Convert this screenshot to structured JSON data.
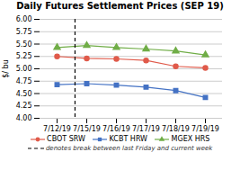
{
  "chart_data": {
    "type": "line",
    "title": "Daily Futures Settlement Prices (SEP 19)",
    "ylabel": "$/ bu",
    "categories": [
      "7/12/19",
      "7/15/19",
      "7/16/19",
      "7/17/19",
      "7/18/19",
      "7/19/19"
    ],
    "series": [
      {
        "name": "CBOT SRW",
        "color": "#e05a4a",
        "marker": "circle",
        "values": [
          5.25,
          5.21,
          5.2,
          5.17,
          5.05,
          5.02
        ]
      },
      {
        "name": "KCBT HRW",
        "color": "#4472c4",
        "marker": "square",
        "values": [
          4.68,
          4.7,
          4.67,
          4.63,
          4.56,
          4.42
        ]
      },
      {
        "name": "MGEX HRS",
        "color": "#70ad47",
        "marker": "triangle",
        "values": [
          5.43,
          5.47,
          5.43,
          5.4,
          5.36,
          5.28
        ]
      }
    ],
    "ylim": [
      4.0,
      6.0
    ],
    "yticks": [
      {
        "value": 4.0,
        "label": "4.00"
      },
      {
        "value": 4.25,
        "label": "4.25"
      },
      {
        "value": 4.5,
        "label": "4.50"
      },
      {
        "value": 4.75,
        "label": "4.75"
      },
      {
        "value": 5.0,
        "label": "5.00"
      },
      {
        "value": 5.25,
        "label": "5.25"
      },
      {
        "value": 5.5,
        "label": "5.50"
      },
      {
        "value": 5.75,
        "label": "5.75"
      },
      {
        "value": 6.0,
        "label": "6.00"
      }
    ],
    "grid": true,
    "legend": "bottom",
    "annotations": [
      {
        "text": "denotes break between last Friday and current week",
        "x": 0.62,
        "line_style": "dashed",
        "color": "#000000"
      }
    ]
  }
}
